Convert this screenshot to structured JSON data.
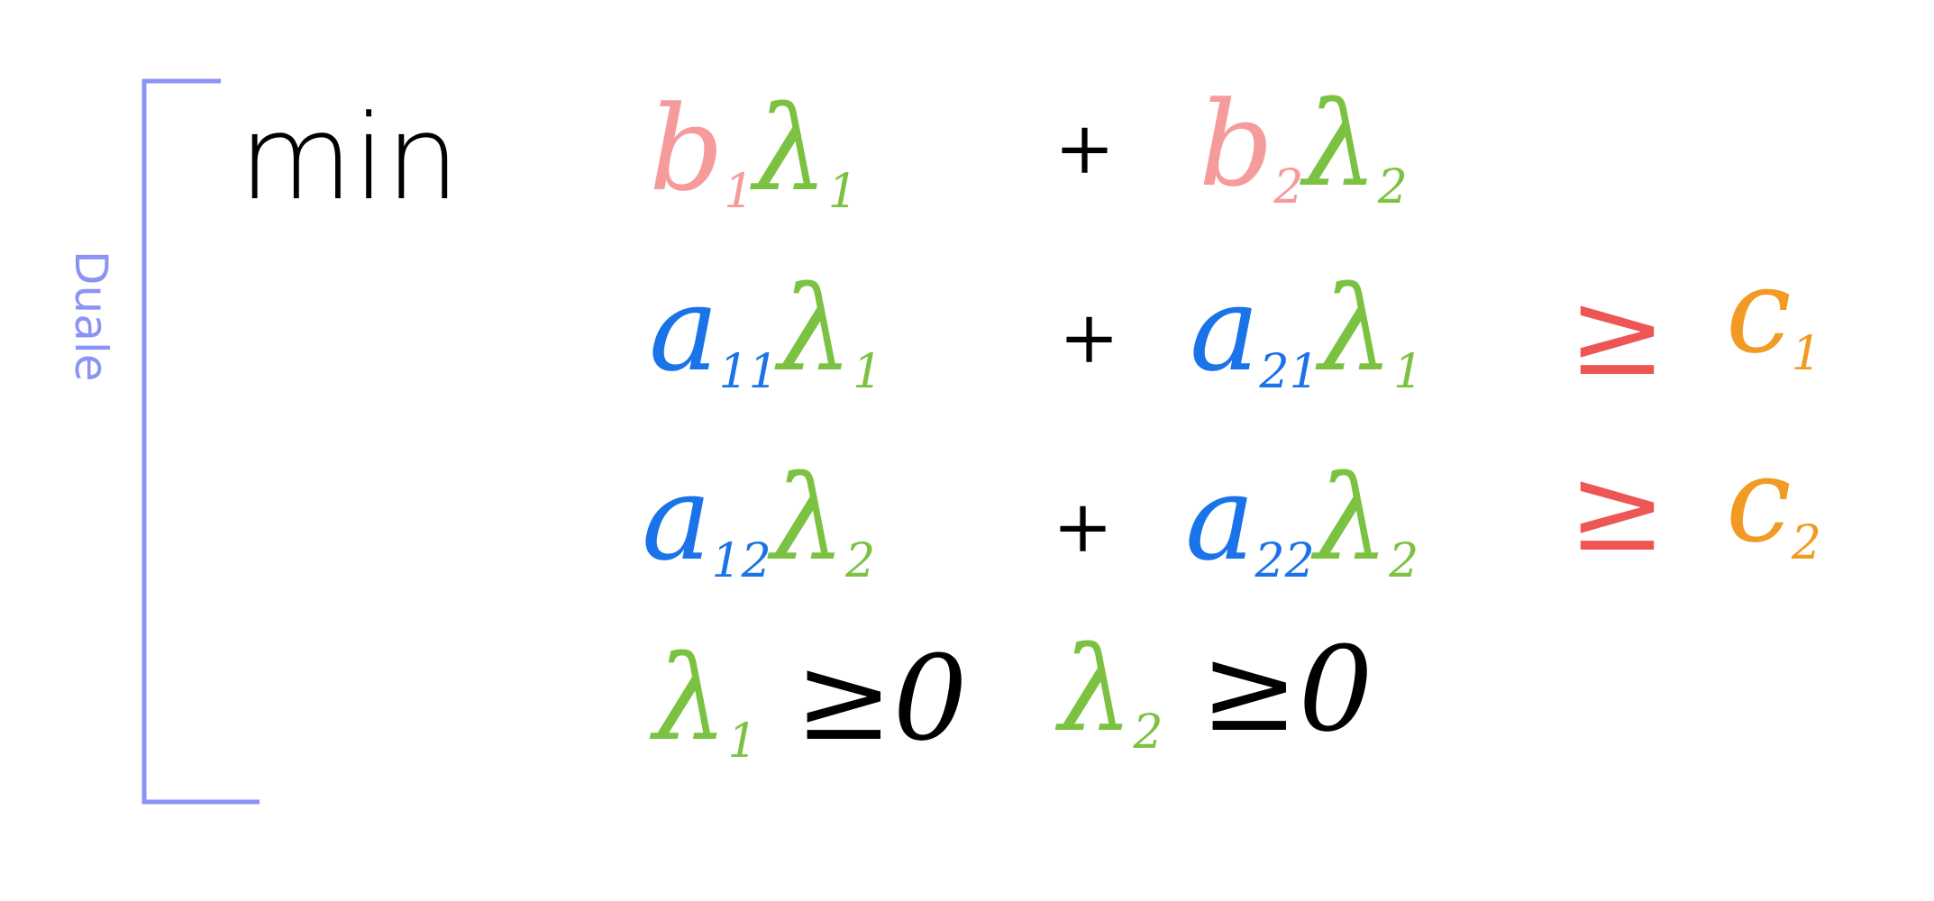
{
  "label": "Duale",
  "objective": {
    "keyword": "min",
    "terms": [
      {
        "coef": "b",
        "coef_sub": "1",
        "var": "λ",
        "var_sub": "1"
      },
      {
        "coef": "b",
        "coef_sub": "2",
        "var": "λ",
        "var_sub": "2"
      }
    ],
    "operator": "+"
  },
  "constraints": [
    {
      "terms": [
        {
          "coef": "a",
          "coef_sub": "11",
          "var": "λ",
          "var_sub": "1"
        },
        {
          "coef": "a",
          "coef_sub": "21",
          "var": "λ",
          "var_sub": "1"
        }
      ],
      "operator": "+",
      "relation": "≥",
      "rhs": "c",
      "rhs_sub": "1"
    },
    {
      "terms": [
        {
          "coef": "a",
          "coef_sub": "12",
          "var": "λ",
          "var_sub": "2"
        },
        {
          "coef": "a",
          "coef_sub": "22",
          "var": "λ",
          "var_sub": "2"
        }
      ],
      "operator": "+",
      "relation": "≥",
      "rhs": "c",
      "rhs_sub": "2"
    }
  ],
  "nonnegativity": [
    {
      "var": "λ",
      "var_sub": "1",
      "relation": "≥",
      "value": "0"
    },
    {
      "var": "λ",
      "var_sub": "2",
      "relation": "≥",
      "value": "0"
    }
  ],
  "colors": {
    "bracket": "#8b93f5",
    "label": "#8b93f5",
    "keyword": "#000000",
    "b": "#f59b9b",
    "a": "#1a73e8",
    "lambda": "#7cc242",
    "relation": "#ee5555",
    "c": "#f29b24",
    "operator": "#000000"
  }
}
